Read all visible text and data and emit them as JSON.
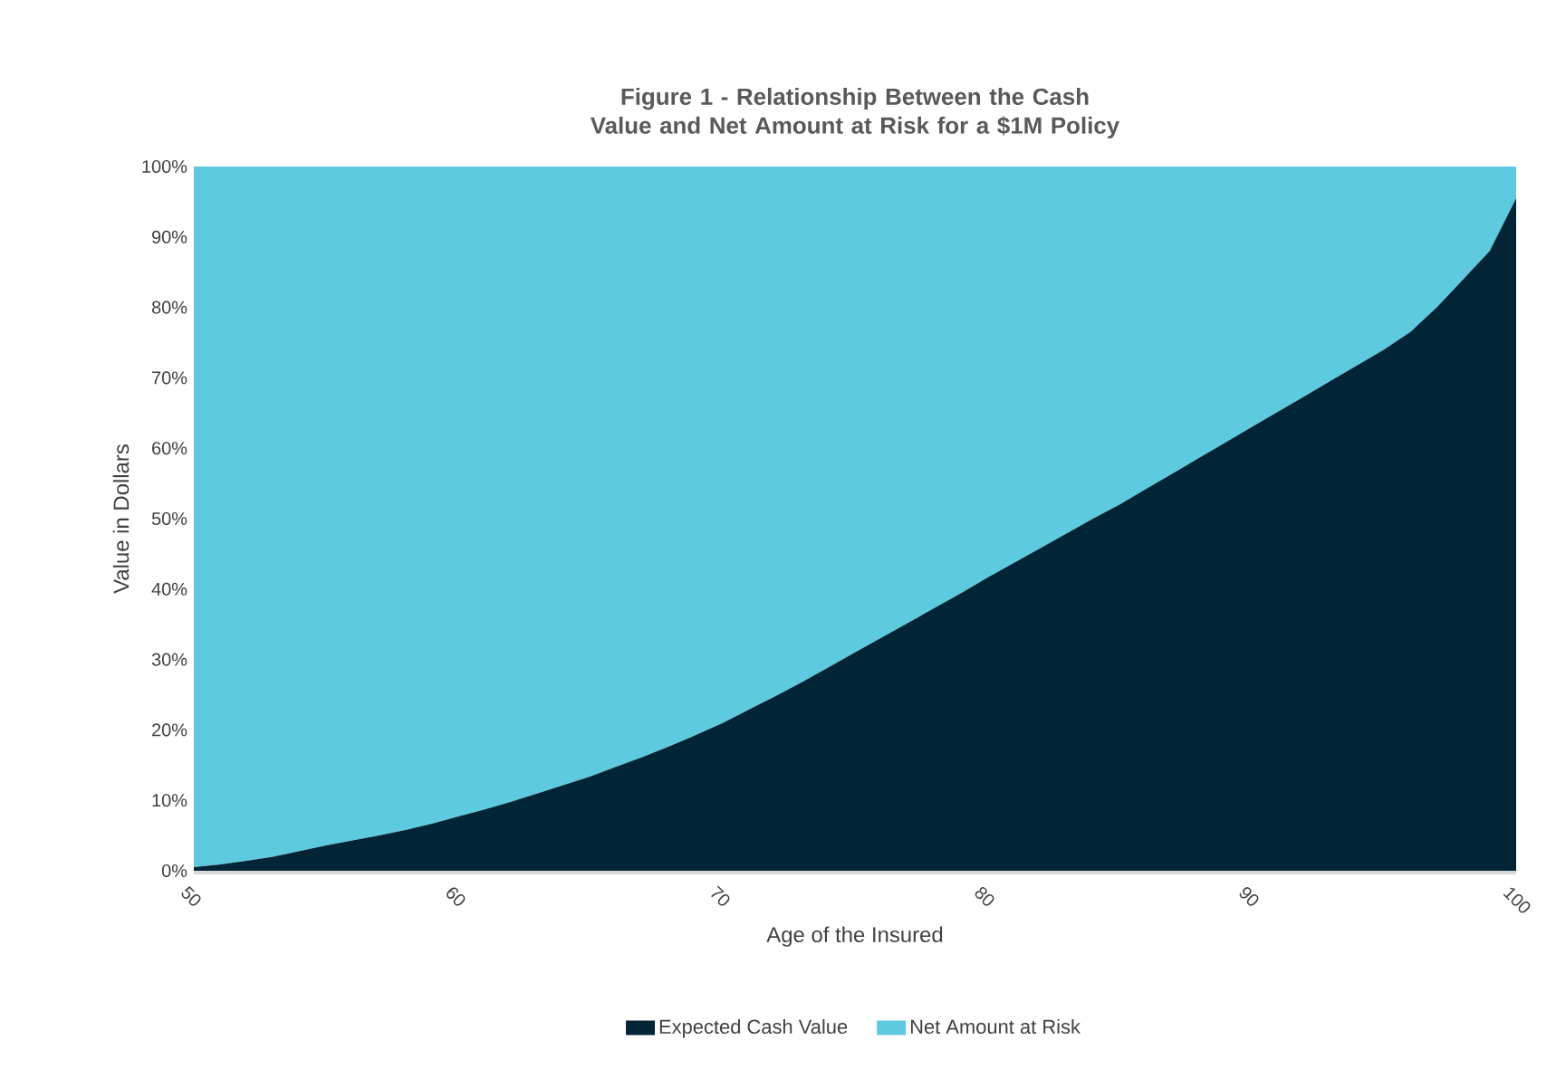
{
  "chart_data": {
    "type": "area",
    "title": "Figure 1 - Relationship Between the Cash Value and Net Amount at Risk for a $1M Policy",
    "xlabel": "Age of the Insured",
    "ylabel": "Value in Dollars",
    "stacked": true,
    "legend": "bottom",
    "x": [
      50,
      51,
      52,
      53,
      54,
      55,
      56,
      57,
      58,
      59,
      60,
      61,
      62,
      63,
      64,
      65,
      66,
      67,
      68,
      69,
      70,
      71,
      72,
      73,
      74,
      75,
      76,
      77,
      78,
      79,
      80,
      81,
      82,
      83,
      84,
      85,
      86,
      87,
      88,
      89,
      90,
      91,
      92,
      93,
      94,
      95,
      96,
      97,
      98,
      99,
      100
    ],
    "series": [
      {
        "name": "Expected Cash Value",
        "color": "#012537",
        "values": [
          0.5,
          0.9,
          1.4,
          2.0,
          2.8,
          3.6,
          4.3,
          5.0,
          5.8,
          6.7,
          7.7,
          8.7,
          9.8,
          11.0,
          12.2,
          13.4,
          14.8,
          16.2,
          17.7,
          19.3,
          21.0,
          22.9,
          24.8,
          26.8,
          28.9,
          31.0,
          33.1,
          35.2,
          37.3,
          39.4,
          41.6,
          43.7,
          45.8,
          47.9,
          50.0,
          52.0,
          54.2,
          56.4,
          58.6,
          60.8,
          63.0,
          65.2,
          67.4,
          69.6,
          71.8,
          74.0,
          76.5,
          80.0,
          84.0,
          88.0,
          95.5
        ]
      },
      {
        "name": "Net Amount at Risk",
        "color": "#5ecadf",
        "values": [
          99.5,
          99.1,
          98.6,
          98.0,
          97.2,
          96.4,
          95.7,
          95.0,
          94.2,
          93.3,
          92.3,
          91.3,
          90.2,
          89.0,
          87.8,
          86.6,
          85.2,
          83.8,
          82.3,
          80.7,
          79.0,
          77.1,
          75.2,
          73.2,
          71.1,
          69.0,
          66.9,
          64.8,
          62.7,
          60.6,
          58.4,
          56.3,
          54.2,
          52.1,
          50.0,
          48.0,
          45.8,
          43.6,
          41.4,
          39.2,
          37.0,
          34.8,
          32.6,
          30.4,
          28.2,
          26.0,
          23.5,
          20.0,
          16.0,
          12.0,
          4.5
        ]
      }
    ],
    "xlim": [
      50,
      100
    ],
    "xticks": [
      50,
      60,
      70,
      80,
      90,
      100
    ],
    "ylim": [
      0,
      100
    ],
    "yticks": [
      {
        "value": 0,
        "label": "0%"
      },
      {
        "value": 10,
        "label": "10%"
      },
      {
        "value": 20,
        "label": "20%"
      },
      {
        "value": 30,
        "label": "30%"
      },
      {
        "value": 40,
        "label": "40%"
      },
      {
        "value": 50,
        "label": "50%"
      },
      {
        "value": 60,
        "label": "60%"
      },
      {
        "value": 70,
        "label": "70%"
      },
      {
        "value": 80,
        "label": "80%"
      },
      {
        "value": 90,
        "label": "90%"
      },
      {
        "value": 100,
        "label": "100%"
      }
    ]
  }
}
